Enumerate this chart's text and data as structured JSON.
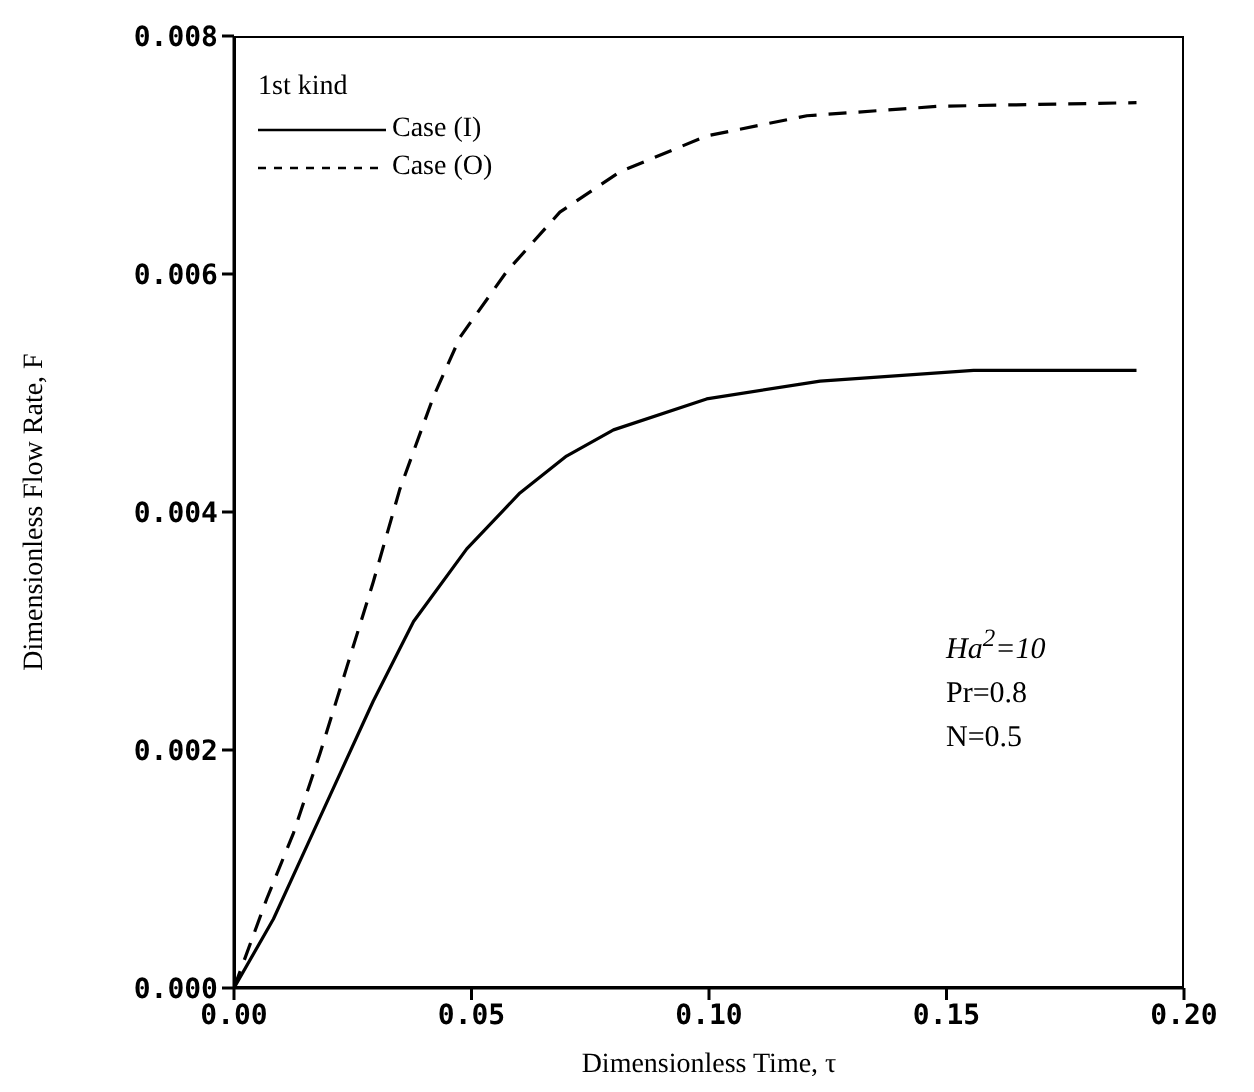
{
  "chart_data": {
    "type": "line",
    "xlabel": "Dimensionless Time, τ",
    "ylabel": "Dimensionless Flow Rate, F",
    "legend_title": "1st kind",
    "legend": "top left",
    "marker": "none",
    "grid": false,
    "xlim": [
      0,
      0.2
    ],
    "xticks": [
      {
        "value": 0,
        "label": "0.00"
      },
      {
        "value": 0.05,
        "label": "0.05"
      },
      {
        "value": 0.1,
        "label": "0.10"
      },
      {
        "value": 0.15,
        "label": "0.15"
      },
      {
        "value": 0.2,
        "label": "0.20"
      }
    ],
    "ylim": [
      0,
      0.008
    ],
    "yticks": [
      {
        "value": 0,
        "label": "0.000"
      },
      {
        "value": 0.002,
        "label": "0.002"
      },
      {
        "value": 0.004,
        "label": "0.004"
      },
      {
        "value": 0.006,
        "label": "0.006"
      },
      {
        "value": 0.008,
        "label": "0.008"
      }
    ],
    "annotations": [
      "Ha$^{2}$=10",
      "Pr=0.8",
      "N=0.5"
    ],
    "series": [
      {
        "name": "Case (I)",
        "color": "#000000",
        "line_style": "solid",
        "x": [
          0,
          0.0083,
          0.0153,
          0.0223,
          0.0293,
          0.0378,
          0.049,
          0.0602,
          0.07,
          0.0799,
          0.0995,
          0.1234,
          0.1557,
          0.19
        ],
        "values": [
          0,
          0.00058,
          0.00119,
          0.0018,
          0.00241,
          0.00308,
          0.00369,
          0.00416,
          0.00447,
          0.00469,
          0.00495,
          0.0051,
          0.00519,
          0.00519
        ]
      },
      {
        "name": "Case (O)",
        "color": "#000000",
        "line_style": "dashed",
        "x": [
          0,
          0.0069,
          0.0125,
          0.0181,
          0.0237,
          0.0293,
          0.0349,
          0.042,
          0.0476,
          0.0574,
          0.0686,
          0.0813,
          0.0995,
          0.1206,
          0.1486,
          0.19
        ],
        "values": [
          0,
          0.00075,
          0.0013,
          0.00197,
          0.00269,
          0.00341,
          0.00419,
          0.00497,
          0.00547,
          0.00602,
          0.00652,
          0.00686,
          0.00716,
          0.00733,
          0.00741,
          0.00744
        ]
      }
    ]
  }
}
